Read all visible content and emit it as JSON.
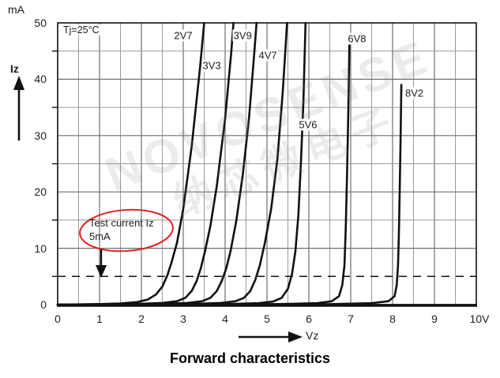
{
  "title": "Forward characteristics",
  "temp_label": "Tj=25°C",
  "y_axis": {
    "unit": "mA",
    "name": "Iz",
    "tick_labels": [
      "50",
      "40",
      "30",
      "20",
      "10",
      "0"
    ],
    "tick_values": [
      50,
      40,
      30,
      20,
      10,
      0
    ]
  },
  "x_axis": {
    "name": "Vz",
    "tick_labels": [
      "0",
      "1",
      "2",
      "3",
      "4",
      "5",
      "6",
      "7",
      "8",
      "9",
      "10V"
    ],
    "tick_values": [
      0,
      1,
      2,
      3,
      4,
      5,
      6,
      7,
      8,
      9,
      10
    ]
  },
  "annotation": {
    "line1": "Test current Iz",
    "line2": "5mA"
  },
  "watermark": {
    "line1": "NOVOSENSE",
    "line2": "纳芯微电子"
  },
  "colors": {
    "curve": "#111111",
    "grid_minor": "#9a9a9a",
    "grid_major": "#6f6f6f",
    "axis": "#111111",
    "annotation_red": "#e02222"
  },
  "chart_data": {
    "type": "line",
    "title": "Forward characteristics",
    "xlabel": "Vz (V)",
    "ylabel": "Iz (mA)",
    "xlim": [
      0,
      10
    ],
    "ylim": [
      0,
      50
    ],
    "x_grid_step": 0.5,
    "y_grid_step": 5,
    "condition": "Tj=25°C",
    "test_current_mA": 5,
    "legend_position": "inline-labels",
    "series": [
      {
        "name": "2V7",
        "label_at": [
          3.0,
          47.8
        ],
        "points": [
          [
            0,
            0
          ],
          [
            0.9,
            0.08
          ],
          [
            1.5,
            0.2
          ],
          [
            1.9,
            0.45
          ],
          [
            2.15,
            0.9
          ],
          [
            2.35,
            1.8
          ],
          [
            2.5,
            3.2
          ],
          [
            2.62,
            5.2
          ],
          [
            2.72,
            7.5
          ],
          [
            2.85,
            11
          ],
          [
            3.0,
            17
          ],
          [
            3.2,
            28
          ],
          [
            3.4,
            42
          ],
          [
            3.5,
            50
          ]
        ]
      },
      {
        "name": "3V3",
        "label_at": [
          3.68,
          42.5
        ],
        "points": [
          [
            0,
            0
          ],
          [
            1.8,
            0.1
          ],
          [
            2.5,
            0.3
          ],
          [
            2.85,
            0.6
          ],
          [
            3.05,
            1.2
          ],
          [
            3.2,
            2.4
          ],
          [
            3.32,
            4.2
          ],
          [
            3.42,
            6.5
          ],
          [
            3.52,
            9.5
          ],
          [
            3.65,
            14
          ],
          [
            3.8,
            21
          ],
          [
            4.0,
            33
          ],
          [
            4.15,
            45
          ],
          [
            4.2,
            50
          ]
        ]
      },
      {
        "name": "3V9",
        "label_at": [
          4.42,
          47.8
        ],
        "points": [
          [
            0,
            0
          ],
          [
            2.4,
            0.1
          ],
          [
            3.1,
            0.3
          ],
          [
            3.45,
            0.6
          ],
          [
            3.65,
            1.2
          ],
          [
            3.8,
            2.4
          ],
          [
            3.92,
            4.2
          ],
          [
            4.03,
            6.5
          ],
          [
            4.13,
            9.5
          ],
          [
            4.27,
            15
          ],
          [
            4.42,
            23
          ],
          [
            4.57,
            33
          ],
          [
            4.7,
            45
          ],
          [
            4.75,
            50
          ]
        ]
      },
      {
        "name": "4V7",
        "label_at": [
          5.02,
          44.2
        ],
        "points": [
          [
            0,
            0
          ],
          [
            3.1,
            0.1
          ],
          [
            3.9,
            0.3
          ],
          [
            4.25,
            0.6
          ],
          [
            4.45,
            1.2
          ],
          [
            4.6,
            2.4
          ],
          [
            4.72,
            4.4
          ],
          [
            4.83,
            7
          ],
          [
            4.95,
            11
          ],
          [
            5.1,
            17
          ],
          [
            5.25,
            26
          ],
          [
            5.38,
            38
          ],
          [
            5.48,
            50
          ]
        ]
      },
      {
        "name": "5V6",
        "label_at": [
          5.98,
          32
        ],
        "points": [
          [
            0,
            0
          ],
          [
            4.0,
            0.08
          ],
          [
            4.8,
            0.25
          ],
          [
            5.15,
            0.55
          ],
          [
            5.35,
            1.2
          ],
          [
            5.5,
            2.8
          ],
          [
            5.6,
            5.5
          ],
          [
            5.68,
            9.5
          ],
          [
            5.75,
            16
          ],
          [
            5.81,
            25
          ],
          [
            5.87,
            36
          ],
          [
            5.92,
            50
          ]
        ]
      },
      {
        "name": "6V8",
        "label_at": [
          7.15,
          47.2
        ],
        "points": [
          [
            0,
            0
          ],
          [
            5.2,
            0.08
          ],
          [
            6.2,
            0.25
          ],
          [
            6.55,
            0.6
          ],
          [
            6.72,
            1.5
          ],
          [
            6.8,
            3.5
          ],
          [
            6.85,
            7
          ],
          [
            6.88,
            13
          ],
          [
            6.91,
            22
          ],
          [
            6.94,
            33
          ],
          [
            6.96,
            42
          ],
          [
            6.97,
            48
          ]
        ]
      },
      {
        "name": "8V2",
        "label_at": [
          8.52,
          37.5
        ],
        "points": [
          [
            0,
            0
          ],
          [
            6.5,
            0.08
          ],
          [
            7.5,
            0.25
          ],
          [
            7.9,
            0.6
          ],
          [
            8.05,
            1.5
          ],
          [
            8.1,
            3.5
          ],
          [
            8.13,
            7
          ],
          [
            8.15,
            12
          ],
          [
            8.17,
            20
          ],
          [
            8.19,
            29
          ],
          [
            8.21,
            39
          ]
        ]
      }
    ]
  }
}
